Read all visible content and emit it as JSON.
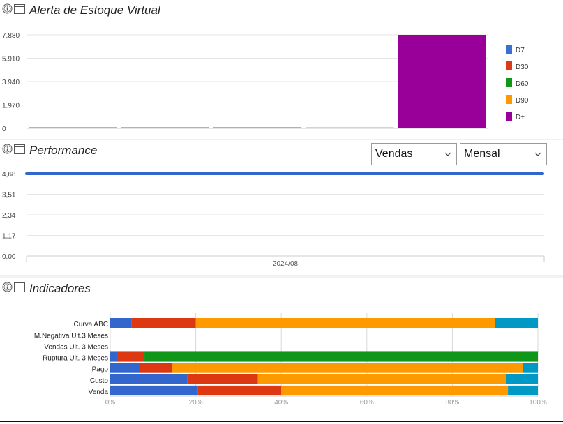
{
  "alert": {
    "title": "Alerta de Estoque Virtual",
    "chart_data": {
      "type": "bar",
      "categories": [
        "D7",
        "D30",
        "D60",
        "D90",
        "D+"
      ],
      "values": [
        8,
        8,
        8,
        8,
        7880
      ],
      "ylim": [
        0,
        7880
      ],
      "yticks": [
        "7.880",
        "5.910",
        "3.940",
        "1.970",
        "0"
      ],
      "colors": [
        "#3b6fd1",
        "#dc3a1a",
        "#109618",
        "#ff9900",
        "#990099"
      ],
      "legend": [
        "D7",
        "D30",
        "D60",
        "D90",
        "D+"
      ],
      "legend_position": "right"
    }
  },
  "performance": {
    "title": "Performance",
    "select_metric": "Vendas",
    "select_period": "Mensal",
    "chart_data": {
      "type": "line",
      "x": [
        "2024/08"
      ],
      "values": [
        4.68
      ],
      "ylim": [
        0,
        4.68
      ],
      "yticks": [
        "4,68",
        "3,51",
        "2,34",
        "1,17",
        "0,00"
      ],
      "color": "#3366cc"
    }
  },
  "indicadores": {
    "title": "Indicadores",
    "chart_data": {
      "type": "bar",
      "orientation": "horizontal",
      "stacked": "percent",
      "categories": [
        "Curva ABC",
        "M.Negativa Ult.3 Meses",
        "Vendas Ult. 3 Meses",
        "Ruptura Ult. 3 Meses",
        "Pago",
        "Custo",
        "Venda"
      ],
      "series": [
        {
          "color": "#3366cc",
          "values": [
            5,
            0,
            0,
            1.5,
            7,
            18,
            20.5
          ]
        },
        {
          "color": "#dc3912",
          "values": [
            15,
            0,
            0,
            6.5,
            7.5,
            16.5,
            19.5
          ]
        },
        {
          "color": "#109618",
          "values": [
            0,
            0,
            0,
            92,
            0,
            0,
            0
          ]
        },
        {
          "color": "#ff9900",
          "values": [
            70,
            0,
            0,
            0,
            82,
            58,
            53
          ]
        },
        {
          "color": "#0099c6",
          "values": [
            10,
            0,
            0,
            0,
            3.5,
            7.5,
            7
          ]
        }
      ],
      "xticks": [
        "0%",
        "20%",
        "40%",
        "60%",
        "80%",
        "100%"
      ],
      "xlim": [
        0,
        100
      ]
    }
  }
}
